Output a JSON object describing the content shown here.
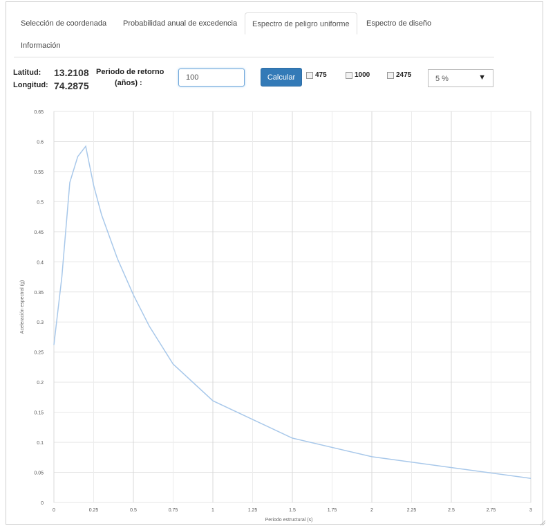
{
  "tabs": [
    {
      "label": "Selección de coordenada",
      "active": false
    },
    {
      "label": "Probabilidad anual de excedencia",
      "active": false
    },
    {
      "label": "Espectro de peligro uniforme",
      "active": true
    },
    {
      "label": "Espectro de diseño",
      "active": false
    },
    {
      "label": "Información",
      "active": false
    }
  ],
  "location": {
    "lat_label": "Latitud:",
    "lat_value": "13.2108",
    "lon_label": "Longitud:",
    "lon_value": "74.2875"
  },
  "return_period": {
    "label_line1": "Periodo de retorno",
    "label_line2": "(años) :",
    "value": "100"
  },
  "calculate_button": "Calcular",
  "checkboxes": [
    {
      "label": "475",
      "checked": false
    },
    {
      "label": "1000",
      "checked": false
    },
    {
      "label": "2475",
      "checked": false
    }
  ],
  "damping_select": {
    "value": "5 %"
  },
  "chart_data": {
    "type": "line",
    "xlabel": "Periodo estructural (s)",
    "ylabel": "Aceleración espectral (g)",
    "xlim": [
      0,
      3
    ],
    "ylim": [
      0,
      0.65
    ],
    "xticks": [
      "0",
      "0.25",
      "0.5",
      "0.75",
      "1",
      "1.25",
      "1.5",
      "1.75",
      "2",
      "2.25",
      "2.5",
      "2.75",
      "3"
    ],
    "yticks": [
      "0",
      "0.05",
      "0.1",
      "0.15",
      "0.2",
      "0.25",
      "0.3",
      "0.35",
      "0.4",
      "0.45",
      "0.5",
      "0.55",
      "0.6",
      "0.65"
    ],
    "grid": true,
    "line_color": "#a8c8ea",
    "series": [
      {
        "x": [
          0,
          0.05,
          0.1,
          0.15,
          0.2,
          0.25,
          0.3,
          0.4,
          0.5,
          0.6,
          0.75,
          1.0,
          1.5,
          2.0,
          3.0
        ],
        "y": [
          0.262,
          0.375,
          0.532,
          0.575,
          0.592,
          0.527,
          0.478,
          0.405,
          0.345,
          0.293,
          0.23,
          0.169,
          0.107,
          0.076,
          0.04
        ]
      }
    ]
  }
}
